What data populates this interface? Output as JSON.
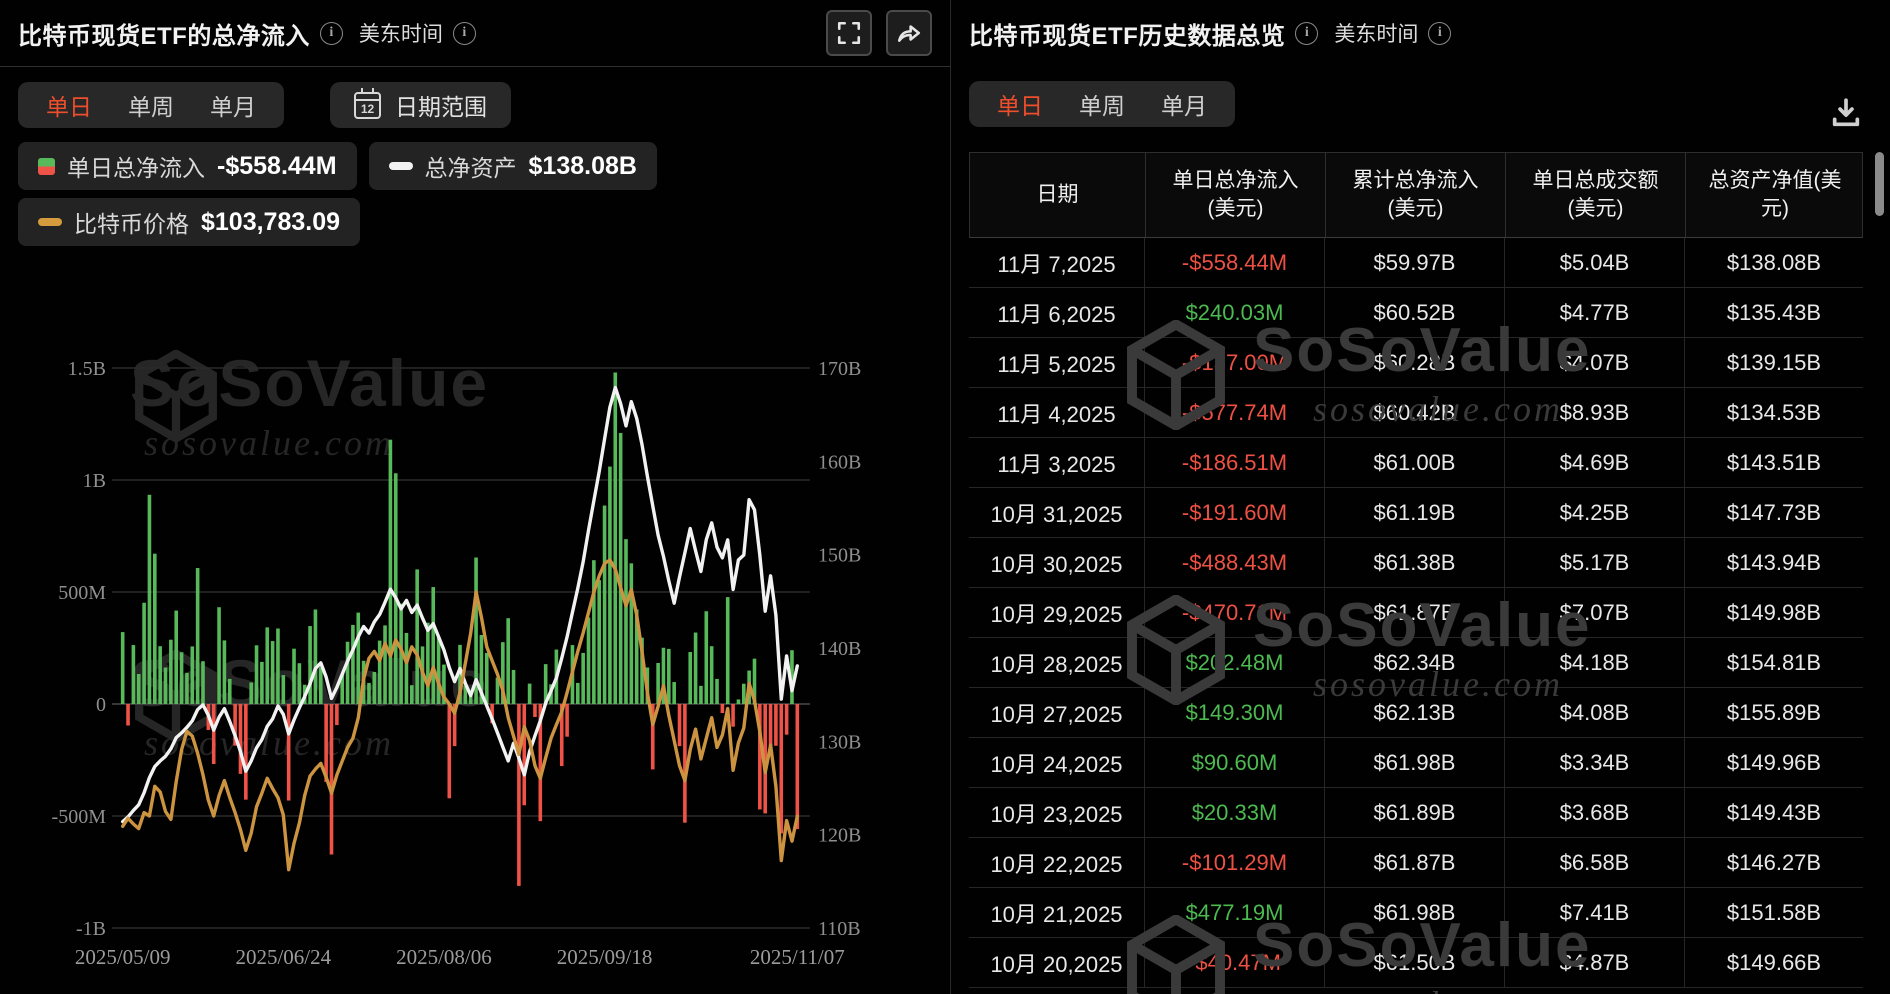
{
  "brand": {
    "watermark_text": "SoSoValue",
    "watermark_domain": "sosovalue.com"
  },
  "left_panel": {
    "title": "比特币现货ETF的总净流入",
    "timezone_label": "美东时间",
    "tabs": [
      {
        "label": "单日",
        "active": true
      },
      {
        "label": "单周",
        "active": false
      },
      {
        "label": "单月",
        "active": false
      }
    ],
    "date_range_label": "日期范围",
    "calendar_icon_day": "12",
    "legend": [
      {
        "label": "单日总净流入",
        "value": "-$558.44M",
        "icon": "green-red-split-square"
      },
      {
        "label": "总净资产",
        "value": "$138.08B",
        "icon": "white-dash"
      },
      {
        "label": "比特币价格",
        "value": "$103,783.09",
        "icon": "orange-dash"
      }
    ]
  },
  "chart_data": {
    "type": "bar+line",
    "title": "比特币现货ETF的总净流入",
    "x_range": [
      "2025/05/09",
      "2025/11/07"
    ],
    "x_tick_labels": [
      "2025/05/09",
      "2025/06/24",
      "2025/08/06",
      "2025/09/18",
      "2025/11/07"
    ],
    "x_tick_indices": [
      0,
      30,
      60,
      90,
      126
    ],
    "left_axis": {
      "ticks": [
        "1.5B",
        "1B",
        "500M",
        "0",
        "-500M",
        "-1B"
      ],
      "max": 1500,
      "min": -1000,
      "unit": "USD (M)"
    },
    "right_axis": {
      "ticks": [
        "170B",
        "160B",
        "150B",
        "140B",
        "130B",
        "120B",
        "110B"
      ],
      "max": 170,
      "min": 110,
      "unit": "USD (B)"
    },
    "grid": true,
    "legend_position": "top-left",
    "series": [
      {
        "name": "单日总净流入",
        "type": "bar",
        "unit": "$M",
        "positive_color": "#58b95b",
        "negative_color": "#ef5246",
        "values": [
          321,
          -96,
          263,
          134,
          452,
          934,
          671,
          258,
          163,
          287,
          417,
          231,
          139,
          257,
          607,
          191,
          -116,
          -268,
          432,
          284,
          112,
          -186,
          -312,
          -427,
          96,
          262,
          188,
          342,
          281,
          337,
          129,
          -431,
          247,
          182,
          86,
          348,
          422,
          164,
          -348,
          -672,
          -94,
          131,
          278,
          353,
          408,
          193,
          94,
          143,
          283,
          351,
          1180,
          1030,
          448,
          317,
          84,
          601,
          257,
          363,
          522,
          298,
          176,
          -421,
          -188,
          264,
          83,
          45,
          654,
          308,
          228,
          -86,
          118,
          276,
          383,
          152,
          -812,
          -452,
          91,
          -58,
          -523,
          178,
          88,
          243,
          -277,
          -146,
          263,
          94,
          228,
          386,
          642,
          553,
          886,
          1060,
          1480,
          1210,
          736,
          628,
          422,
          296,
          163,
          -292,
          183,
          251,
          246,
          98,
          -188,
          -530,
          232,
          319,
          81,
          414,
          258,
          112,
          -40.47,
          477.19,
          -101.29,
          20.33,
          90.6,
          149.3,
          202.48,
          -470.71,
          -488.43,
          -191.6,
          -186.51,
          -577.74,
          -137.0,
          240.03,
          -558.44
        ]
      },
      {
        "name": "总净资产",
        "type": "line",
        "unit": "$B",
        "color": "#f2f2f2",
        "values": [
          121.4,
          121.9,
          122.6,
          123.2,
          124.5,
          126.1,
          127.3,
          127.9,
          128.4,
          129.2,
          130.4,
          130.9,
          131.5,
          132.2,
          133.4,
          133.9,
          132.8,
          131.2,
          132.6,
          133.5,
          132.1,
          130.6,
          128.9,
          126.8,
          127.9,
          129.3,
          130.2,
          131.6,
          132.4,
          133.8,
          132.9,
          130.8,
          132.3,
          133.6,
          134.8,
          136.2,
          137.8,
          138.4,
          136.9,
          134.6,
          135.8,
          137.2,
          138.6,
          139.8,
          141.2,
          142.3,
          141.6,
          142.8,
          143.6,
          144.9,
          146.3,
          145.4,
          144.2,
          145.1,
          143.8,
          144.6,
          143.2,
          141.9,
          142.6,
          141.2,
          139.8,
          137.9,
          136.4,
          137.8,
          136.2,
          134.9,
          136.6,
          135.2,
          133.8,
          132.4,
          130.9,
          129.4,
          127.9,
          129.8,
          128.2,
          126.4,
          128.9,
          130.6,
          132.2,
          134.1,
          135.4,
          136.8,
          138.9,
          141.2,
          143.8,
          146.4,
          149.2,
          152.6,
          155.8,
          158.9,
          162.4,
          165.8,
          167.9,
          166.2,
          163.8,
          166.4,
          164.6,
          161.8,
          158.4,
          155.2,
          152.1,
          149.8,
          147.2,
          144.8,
          147.6,
          150.2,
          152.8,
          150.4,
          148.2,
          151.6,
          153.4,
          150.8,
          149.66,
          151.58,
          146.27,
          149.43,
          149.96,
          155.89,
          154.81,
          149.98,
          143.94,
          147.73,
          143.51,
          134.53,
          139.15,
          135.43,
          138.08
        ]
      },
      {
        "name": "比特币价格",
        "type": "line",
        "unit": "$K",
        "color": "#cc9440",
        "plot_domain": [
          94,
          143
        ],
        "values": [
          102.9,
          103.6,
          103.1,
          102.7,
          104.1,
          103.8,
          106.4,
          105.9,
          104.2,
          103.5,
          106.8,
          109.6,
          111.2,
          110.8,
          109.3,
          107.4,
          105.2,
          103.8,
          105.6,
          106.9,
          105.4,
          104.1,
          102.6,
          100.8,
          102.3,
          104.6,
          105.8,
          107.1,
          106.2,
          105.4,
          103.9,
          99.1,
          101.4,
          103.2,
          105.6,
          107.3,
          107.9,
          108.4,
          107.2,
          105.8,
          107.4,
          108.6,
          109.8,
          110.6,
          112.4,
          115.8,
          117.6,
          118.2,
          117.4,
          118.9,
          117.8,
          119.2,
          118.4,
          117.2,
          118.6,
          117.9,
          116.4,
          115.2,
          116.8,
          115.4,
          114.2,
          113.6,
          112.8,
          114.6,
          117.2,
          119.8,
          123.4,
          121.2,
          118.6,
          117.4,
          116.2,
          114.8,
          112.4,
          110.8,
          109.2,
          111.6,
          110.4,
          108.2,
          107.1,
          108.9,
          110.6,
          111.8,
          112.9,
          114.6,
          116.4,
          118.2,
          119.8,
          121.6,
          123.4,
          124.8,
          125.9,
          126.2,
          125.4,
          123.8,
          122.2,
          123.6,
          121.4,
          118.2,
          114.6,
          111.8,
          113.4,
          115.2,
          112.6,
          110.4,
          108.2,
          106.9,
          109.6,
          111.4,
          108.8,
          110.6,
          112.4,
          109.8,
          110.9,
          113.2,
          107.8,
          110.2,
          111.5,
          115.4,
          113.9,
          111.2,
          107.6,
          110.0,
          106.4,
          99.9,
          103.4,
          101.6,
          103.78
        ]
      }
    ]
  },
  "right_panel": {
    "title": "比特币现货ETF历史数据总览",
    "timezone_label": "美东时间",
    "tabs": [
      {
        "label": "单日",
        "active": true
      },
      {
        "label": "单周",
        "active": false
      },
      {
        "label": "单月",
        "active": false
      }
    ],
    "table": {
      "headers": [
        {
          "l1": "日期",
          "l2": ""
        },
        {
          "l1": "单日总净流入",
          "l2": "(美元)"
        },
        {
          "l1": "累计总净流入",
          "l2": "(美元)"
        },
        {
          "l1": "单日总成交额",
          "l2": "(美元)"
        },
        {
          "l1": "总资产净值(美",
          "l2": "元)"
        }
      ],
      "rows": [
        [
          "11月 7,2025",
          "-$558.44M",
          "$59.97B",
          "$5.04B",
          "$138.08B"
        ],
        [
          "11月 6,2025",
          "$240.03M",
          "$60.52B",
          "$4.77B",
          "$135.43B"
        ],
        [
          "11月 5,2025",
          "-$137.00M",
          "$60.28B",
          "$4.07B",
          "$139.15B"
        ],
        [
          "11月 4,2025",
          "-$577.74M",
          "$60.42B",
          "$8.93B",
          "$134.53B"
        ],
        [
          "11月 3,2025",
          "-$186.51M",
          "$61.00B",
          "$4.69B",
          "$143.51B"
        ],
        [
          "10月 31,2025",
          "-$191.60M",
          "$61.19B",
          "$4.25B",
          "$147.73B"
        ],
        [
          "10月 30,2025",
          "-$488.43M",
          "$61.38B",
          "$5.17B",
          "$143.94B"
        ],
        [
          "10月 29,2025",
          "-$470.71M",
          "$61.87B",
          "$7.07B",
          "$149.98B"
        ],
        [
          "10月 28,2025",
          "$202.48M",
          "$62.34B",
          "$4.18B",
          "$154.81B"
        ],
        [
          "10月 27,2025",
          "$149.30M",
          "$62.13B",
          "$4.08B",
          "$155.89B"
        ],
        [
          "10月 24,2025",
          "$90.60M",
          "$61.98B",
          "$3.34B",
          "$149.96B"
        ],
        [
          "10月 23,2025",
          "$20.33M",
          "$61.89B",
          "$3.68B",
          "$149.43B"
        ],
        [
          "10月 22,2025",
          "-$101.29M",
          "$61.87B",
          "$6.58B",
          "$146.27B"
        ],
        [
          "10月 21,2025",
          "$477.19M",
          "$61.98B",
          "$7.41B",
          "$151.58B"
        ],
        [
          "10月 20,2025",
          "-$40.47M",
          "$61.50B",
          "$4.87B",
          "$149.66B"
        ]
      ]
    }
  },
  "colors": {
    "background": "#010101",
    "accent_active_tab": "#ee4e2c",
    "positive_green": "#4cba50",
    "negative_red": "#ee5144",
    "bar_green": "#58b95b",
    "bar_red": "#ef5246",
    "nav_line": "#f2f2f2",
    "btc_line": "#cc9440",
    "gridline": "#252525",
    "panel_divider": "#2b2b2b"
  }
}
